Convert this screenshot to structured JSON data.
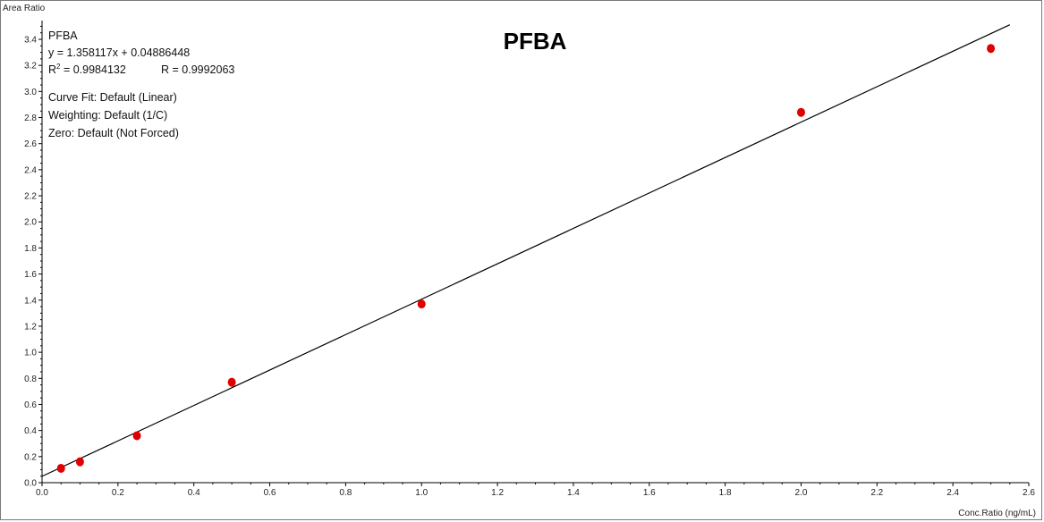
{
  "chart_data": {
    "type": "scatter",
    "title": "PFBA",
    "xlabel": "Conc.Ratio (ng/mL)",
    "ylabel": "Area Ratio",
    "xlim": [
      0,
      2.6
    ],
    "ylim": [
      0,
      3.5
    ],
    "x_ticks": [
      0.0,
      0.2,
      0.4,
      0.6,
      0.8,
      1.0,
      1.2,
      1.4,
      1.6,
      1.8,
      2.0,
      2.2,
      2.4,
      2.6
    ],
    "y_ticks": [
      0.0,
      0.2,
      0.4,
      0.6,
      0.8,
      1.0,
      1.2,
      1.4,
      1.6,
      1.8,
      2.0,
      2.2,
      2.4,
      2.6,
      2.8,
      3.0,
      3.2,
      3.4
    ],
    "grid": false,
    "point_color": "#e00000",
    "line_color": "#000000",
    "series": [
      {
        "x": [
          0.05,
          0.1,
          0.25,
          0.5,
          1.0,
          2.0,
          2.5
        ],
        "y": [
          0.11,
          0.16,
          0.36,
          0.77,
          1.37,
          2.84,
          3.33
        ]
      }
    ],
    "fit": {
      "slope": 1.358117,
      "intercept": 0.04886448,
      "x_range": [
        0.0,
        2.55
      ]
    },
    "annotations": {
      "compound": "PFBA",
      "equation": "y = 1.358117x + 0.04886448",
      "r2_prefix": "R",
      "r2_sup": "2",
      "r2_value": " = 0.9984132",
      "r_value": "R = 0.9992063",
      "curve_fit": "Curve Fit: Default (Linear)",
      "weighting": "Weighting: Default (1/C)",
      "zero": "Zero: Default (Not Forced)"
    }
  }
}
